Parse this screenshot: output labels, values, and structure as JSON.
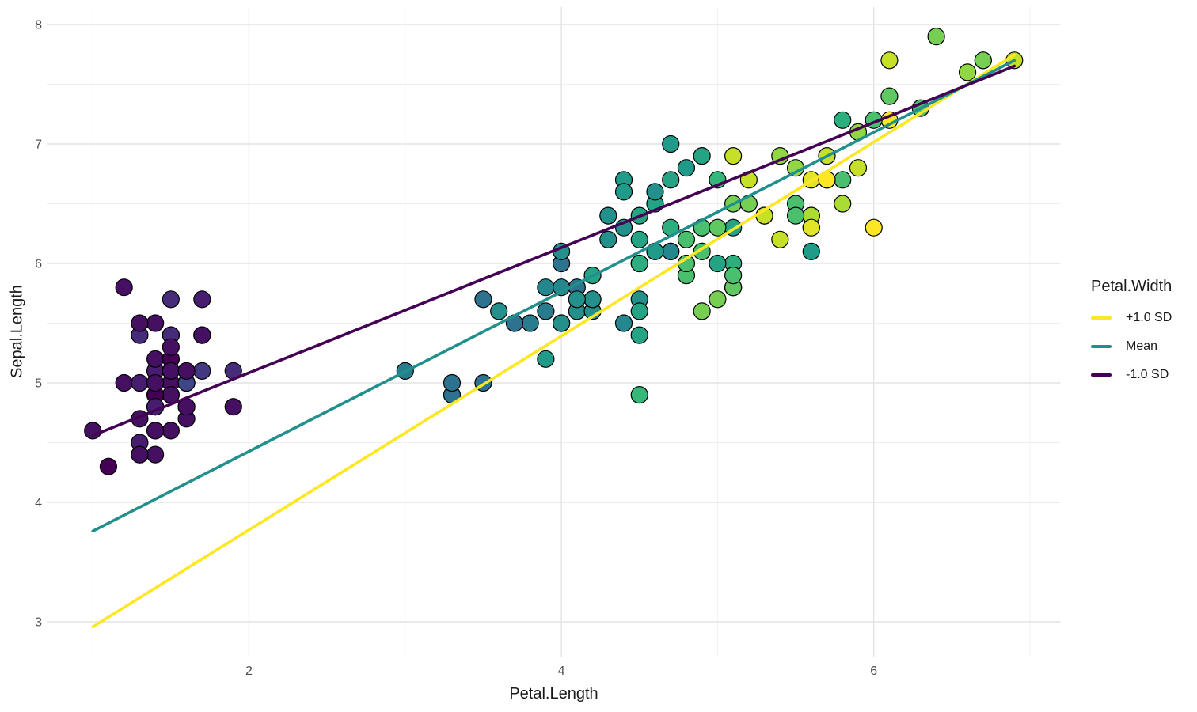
{
  "chart_data": {
    "type": "scatter",
    "title": "",
    "xlabel": "Petal.Length",
    "ylabel": "Sepal.Length",
    "x_ticks_major": [
      2,
      4,
      6
    ],
    "x_ticks_minor": [
      1,
      3,
      5,
      7
    ],
    "y_ticks_major": [
      3,
      4,
      5,
      6,
      7,
      8
    ],
    "y_ticks_minor": [
      3.5,
      4.5,
      5.5,
      6.5,
      7.5
    ],
    "xlim": [
      0.705,
      7.195
    ],
    "ylim": [
      2.709,
      8.147
    ],
    "grid": "major+minor",
    "legend": {
      "title": "Petal.Width",
      "position": "right",
      "items": [
        {
          "label": "+1.0 SD",
          "color": "#FDE725"
        },
        {
          "label": "Mean",
          "color": "#21908C"
        },
        {
          "label": "-1.0 SD",
          "color": "#440154"
        }
      ]
    },
    "color_mapping": {
      "variable": "Petal.Width",
      "palette": "viridis",
      "domain": [
        0.1,
        2.5
      ],
      "stops": [
        "#440154",
        "#482878",
        "#3E4A89",
        "#31688E",
        "#26828E",
        "#1F9E89",
        "#35B779",
        "#6DCD59",
        "#B4DE2C",
        "#FDE725"
      ]
    },
    "lines": [
      {
        "label": "+1.0 SD",
        "color": "#FDE725",
        "x1": 1.0,
        "y1": 2.958,
        "x2": 6.9,
        "y2": 7.746
      },
      {
        "label": "Mean",
        "color": "#21908C",
        "x1": 1.0,
        "y1": 3.759,
        "x2": 6.9,
        "y2": 7.699
      },
      {
        "label": "-1.0 SD",
        "color": "#440154",
        "x1": 1.0,
        "y1": 4.56,
        "x2": 6.9,
        "y2": 7.652
      }
    ],
    "points_format": [
      "Petal.Length",
      "Sepal.Length",
      "Petal.Width"
    ],
    "points": [
      [
        1.4,
        5.1,
        0.2
      ],
      [
        1.4,
        4.9,
        0.2
      ],
      [
        1.3,
        4.7,
        0.2
      ],
      [
        1.5,
        4.6,
        0.2
      ],
      [
        1.4,
        5.0,
        0.2
      ],
      [
        1.7,
        5.4,
        0.4
      ],
      [
        1.4,
        4.6,
        0.3
      ],
      [
        1.5,
        5.0,
        0.2
      ],
      [
        1.4,
        4.4,
        0.2
      ],
      [
        1.5,
        4.9,
        0.1
      ],
      [
        1.5,
        5.4,
        0.2
      ],
      [
        1.6,
        4.8,
        0.2
      ],
      [
        1.4,
        4.8,
        0.1
      ],
      [
        1.1,
        4.3,
        0.1
      ],
      [
        1.2,
        5.8,
        0.2
      ],
      [
        1.5,
        5.7,
        0.4
      ],
      [
        1.3,
        5.4,
        0.4
      ],
      [
        1.4,
        5.1,
        0.3
      ],
      [
        1.7,
        5.7,
        0.3
      ],
      [
        1.5,
        5.1,
        0.3
      ],
      [
        1.7,
        5.4,
        0.2
      ],
      [
        1.5,
        5.1,
        0.4
      ],
      [
        1.0,
        4.6,
        0.2
      ],
      [
        1.7,
        5.1,
        0.5
      ],
      [
        1.9,
        4.8,
        0.2
      ],
      [
        1.6,
        5.0,
        0.2
      ],
      [
        1.6,
        5.0,
        0.4
      ],
      [
        1.5,
        5.2,
        0.2
      ],
      [
        1.4,
        5.2,
        0.2
      ],
      [
        1.6,
        4.7,
        0.2
      ],
      [
        1.6,
        4.8,
        0.2
      ],
      [
        1.5,
        5.4,
        0.4
      ],
      [
        1.5,
        5.2,
        0.1
      ],
      [
        1.4,
        5.5,
        0.2
      ],
      [
        1.5,
        4.9,
        0.2
      ],
      [
        1.2,
        5.0,
        0.2
      ],
      [
        1.3,
        5.5,
        0.2
      ],
      [
        1.4,
        4.9,
        0.1
      ],
      [
        1.3,
        4.4,
        0.2
      ],
      [
        1.5,
        5.1,
        0.2
      ],
      [
        1.3,
        5.0,
        0.3
      ],
      [
        1.3,
        4.5,
        0.3
      ],
      [
        1.3,
        4.4,
        0.2
      ],
      [
        1.6,
        5.0,
        0.6
      ],
      [
        1.9,
        5.1,
        0.4
      ],
      [
        1.4,
        4.8,
        0.3
      ],
      [
        1.6,
        5.1,
        0.2
      ],
      [
        1.4,
        4.6,
        0.2
      ],
      [
        1.5,
        5.3,
        0.2
      ],
      [
        1.4,
        5.0,
        0.2
      ],
      [
        4.7,
        7.0,
        1.4
      ],
      [
        4.5,
        6.4,
        1.5
      ],
      [
        4.9,
        6.9,
        1.5
      ],
      [
        4.0,
        5.5,
        1.3
      ],
      [
        4.6,
        6.5,
        1.5
      ],
      [
        4.5,
        5.7,
        1.3
      ],
      [
        4.7,
        6.3,
        1.6
      ],
      [
        3.3,
        4.9,
        1.0
      ],
      [
        4.6,
        6.6,
        1.3
      ],
      [
        3.9,
        5.2,
        1.4
      ],
      [
        3.5,
        5.0,
        1.0
      ],
      [
        4.2,
        5.9,
        1.5
      ],
      [
        4.0,
        6.0,
        1.0
      ],
      [
        4.7,
        6.1,
        1.4
      ],
      [
        3.6,
        5.6,
        1.3
      ],
      [
        4.4,
        6.7,
        1.4
      ],
      [
        4.5,
        5.6,
        1.5
      ],
      [
        4.1,
        5.8,
        1.0
      ],
      [
        4.5,
        6.2,
        1.5
      ],
      [
        3.9,
        5.6,
        1.1
      ],
      [
        4.8,
        5.9,
        1.8
      ],
      [
        4.0,
        6.1,
        1.3
      ],
      [
        4.9,
        6.3,
        1.5
      ],
      [
        4.7,
        6.1,
        1.2
      ],
      [
        4.3,
        6.4,
        1.3
      ],
      [
        4.4,
        6.6,
        1.4
      ],
      [
        4.8,
        6.8,
        1.4
      ],
      [
        5.0,
        6.7,
        1.7
      ],
      [
        4.5,
        6.0,
        1.5
      ],
      [
        3.5,
        5.7,
        1.0
      ],
      [
        3.8,
        5.5,
        1.1
      ],
      [
        3.7,
        5.5,
        1.0
      ],
      [
        3.9,
        5.8,
        1.2
      ],
      [
        5.1,
        6.0,
        1.6
      ],
      [
        4.5,
        5.4,
        1.5
      ],
      [
        4.5,
        6.0,
        1.6
      ],
      [
        4.7,
        6.7,
        1.5
      ],
      [
        4.4,
        6.3,
        1.3
      ],
      [
        4.1,
        5.6,
        1.3
      ],
      [
        4.0,
        5.5,
        1.3
      ],
      [
        4.4,
        5.5,
        1.2
      ],
      [
        4.6,
        6.1,
        1.4
      ],
      [
        4.0,
        5.8,
        1.2
      ],
      [
        3.3,
        5.0,
        1.0
      ],
      [
        4.2,
        5.6,
        1.3
      ],
      [
        4.2,
        5.7,
        1.2
      ],
      [
        4.2,
        5.7,
        1.3
      ],
      [
        4.3,
        6.2,
        1.3
      ],
      [
        3.0,
        5.1,
        1.1
      ],
      [
        4.1,
        5.7,
        1.3
      ],
      [
        6.0,
        6.3,
        2.5
      ],
      [
        5.1,
        5.8,
        1.9
      ],
      [
        5.9,
        7.1,
        2.1
      ],
      [
        5.6,
        6.3,
        1.8
      ],
      [
        5.8,
        6.5,
        2.2
      ],
      [
        6.6,
        7.6,
        2.1
      ],
      [
        4.5,
        4.9,
        1.7
      ],
      [
        6.3,
        7.3,
        1.8
      ],
      [
        5.8,
        6.7,
        1.8
      ],
      [
        6.1,
        7.2,
        2.5
      ],
      [
        5.1,
        6.5,
        2.0
      ],
      [
        5.3,
        6.4,
        1.9
      ],
      [
        5.5,
        6.8,
        2.1
      ],
      [
        5.0,
        5.7,
        2.0
      ],
      [
        5.1,
        5.8,
        2.4
      ],
      [
        5.3,
        6.4,
        2.3
      ],
      [
        5.5,
        6.5,
        1.8
      ],
      [
        6.7,
        7.7,
        2.2
      ],
      [
        6.9,
        7.7,
        2.3
      ],
      [
        5.0,
        6.0,
        1.5
      ],
      [
        5.7,
        6.9,
        2.3
      ],
      [
        4.9,
        5.6,
        2.0
      ],
      [
        6.7,
        7.7,
        2.0
      ],
      [
        4.9,
        6.3,
        1.8
      ],
      [
        5.7,
        6.7,
        2.1
      ],
      [
        6.0,
        7.2,
        1.8
      ],
      [
        4.8,
        6.2,
        1.8
      ],
      [
        4.9,
        6.1,
        1.8
      ],
      [
        5.6,
        6.4,
        2.1
      ],
      [
        5.8,
        7.2,
        1.6
      ],
      [
        6.1,
        7.4,
        1.9
      ],
      [
        6.4,
        7.9,
        2.0
      ],
      [
        5.6,
        6.4,
        2.2
      ],
      [
        5.1,
        6.3,
        1.5
      ],
      [
        5.6,
        6.1,
        1.4
      ],
      [
        6.1,
        7.7,
        2.3
      ],
      [
        5.6,
        6.3,
        2.4
      ],
      [
        5.5,
        6.4,
        1.8
      ],
      [
        4.8,
        6.0,
        1.8
      ],
      [
        5.4,
        6.9,
        2.1
      ],
      [
        5.6,
        6.7,
        2.4
      ],
      [
        5.1,
        6.9,
        2.3
      ],
      [
        5.1,
        5.8,
        1.9
      ],
      [
        5.9,
        6.8,
        2.3
      ],
      [
        5.7,
        6.7,
        2.5
      ],
      [
        5.2,
        6.7,
        2.3
      ],
      [
        5.0,
        6.3,
        1.9
      ],
      [
        5.2,
        6.5,
        2.0
      ],
      [
        5.4,
        6.2,
        2.3
      ],
      [
        5.1,
        5.9,
        1.8
      ]
    ]
  },
  "colors": {
    "background": "#FFFFFF",
    "grid_major": "#E3E3E3",
    "grid_minor": "#EFEFEF",
    "tick_label": "#4D4D4D",
    "axis_title": "#1A1A1A",
    "point_stroke": "#000000"
  }
}
